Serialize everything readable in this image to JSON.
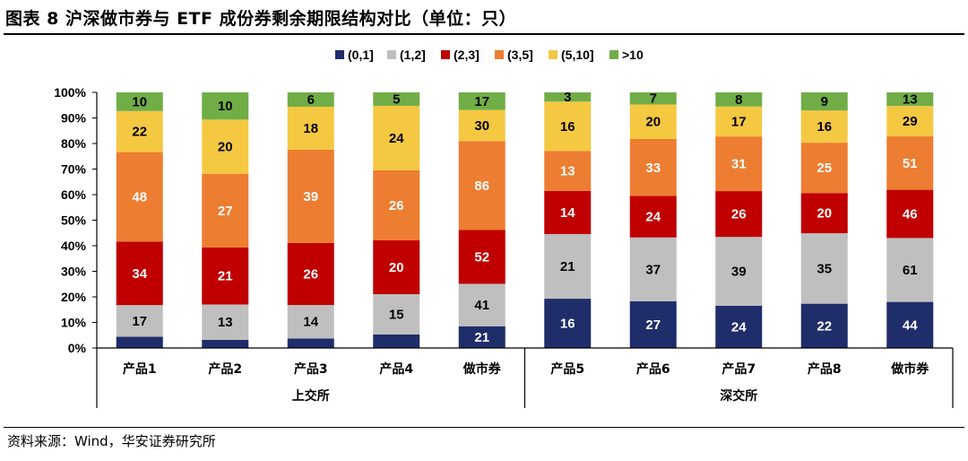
{
  "title": "图表 8 沪深做市券与 ETF 成份券剩余期限结构对比（单位：只）",
  "source": "资料来源：Wind，华安证券研究所",
  "chart_data": {
    "type": "bar",
    "stacked": true,
    "normalized": true,
    "categories": [
      "产品1",
      "产品2",
      "产品3",
      "产品4",
      "做市券",
      "产品5",
      "产品6",
      "产品7",
      "产品8",
      "做市券"
    ],
    "groups": [
      {
        "label": "上交所",
        "categories": [
          0,
          1,
          2,
          3,
          4
        ]
      },
      {
        "label": "深交所",
        "categories": [
          5,
          6,
          7,
          8,
          9
        ]
      }
    ],
    "series": [
      {
        "name": "(0,1]",
        "color": "#1F2D6B",
        "label_color": "#ffffff",
        "values": [
          6,
          3,
          4,
          5,
          21,
          16,
          27,
          24,
          22,
          44
        ]
      },
      {
        "name": "(1,2]",
        "color": "#BFBFBF",
        "label_color": "#000000",
        "values": [
          17,
          13,
          14,
          15,
          41,
          21,
          37,
          39,
          35,
          61
        ]
      },
      {
        "name": "(2,3]",
        "color": "#C00000",
        "label_color": "#ffffff",
        "values": [
          34,
          21,
          26,
          20,
          52,
          14,
          24,
          26,
          20,
          46
        ]
      },
      {
        "name": "(3,5]",
        "color": "#ED7D31",
        "label_color": "#ffffff",
        "values": [
          48,
          27,
          39,
          26,
          86,
          13,
          33,
          31,
          25,
          51
        ]
      },
      {
        "name": "(5,10]",
        "color": "#F5C842",
        "label_color": "#000000",
        "values": [
          22,
          20,
          18,
          24,
          30,
          16,
          20,
          17,
          16,
          29
        ]
      },
      {
        "name": ">10",
        "color": "#70AD47",
        "label_color": "#000000",
        "values": [
          10,
          10,
          6,
          5,
          17,
          3,
          7,
          8,
          9,
          13
        ]
      }
    ],
    "label_series_indices": [
      1,
      2,
      3,
      4,
      5,
      5,
      5,
      5,
      5,
      5,
      0,
      0,
      0,
      0,
      0
    ],
    "first_series_labels": [
      false,
      false,
      false,
      false,
      true,
      true,
      true,
      true,
      true,
      true
    ],
    "ylim": [
      0,
      100
    ],
    "yticks": [
      "0%",
      "10%",
      "20%",
      "30%",
      "40%",
      "50%",
      "60%",
      "70%",
      "80%",
      "90%",
      "100%"
    ],
    "legend_position": "top-center",
    "grid": false
  }
}
